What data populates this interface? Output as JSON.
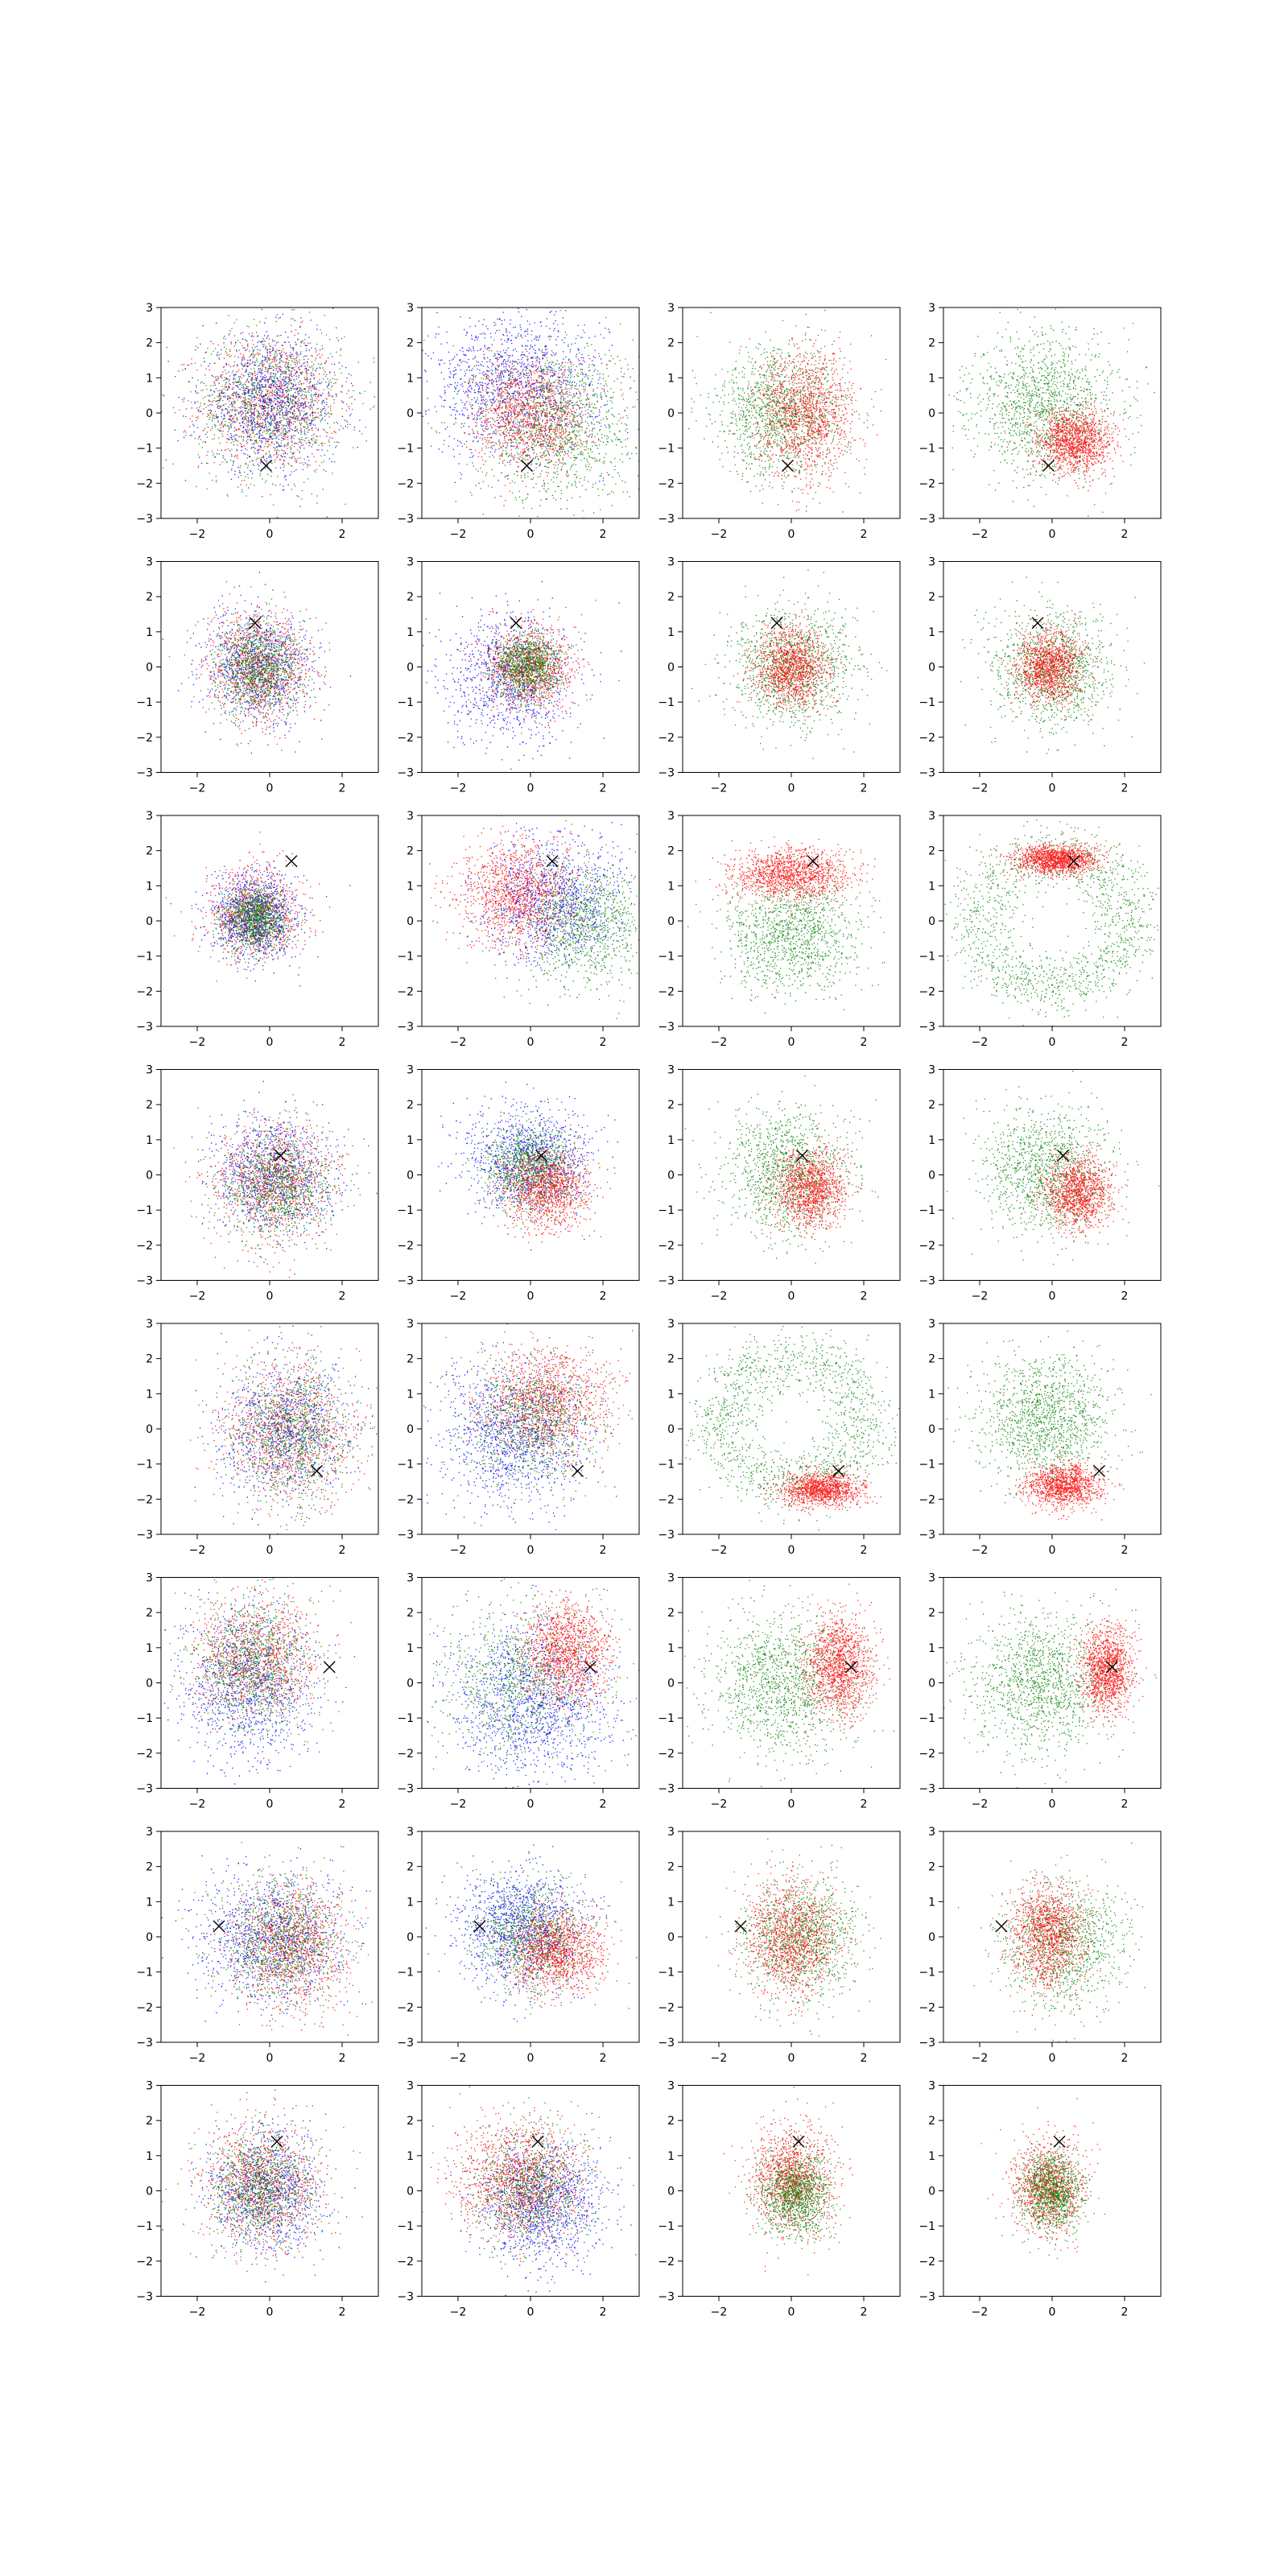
{
  "chart_data": {
    "type": "scatter",
    "description_grid": "8 rows x 4 columns of scatter panels",
    "shared_axes": {
      "xlim": [
        -3,
        3
      ],
      "ylim": [
        -3,
        3
      ],
      "xticks": [
        -2,
        0,
        2
      ],
      "yticks": [
        -3,
        -2,
        -1,
        0,
        1,
        2,
        3
      ],
      "xtick_labels": [
        "−2",
        "0",
        "2"
      ],
      "ytick_labels": [
        "−3",
        "−2",
        "−1",
        "0",
        "1",
        "2",
        "3"
      ],
      "grid": false,
      "legend": "none"
    },
    "colors": {
      "red": "#ff0000",
      "green": "#008000",
      "blue": "#0000ff",
      "marker": "#000000"
    },
    "marker_symbol": "x",
    "rows": [
      {
        "marker": [
          -0.1,
          -1.5
        ],
        "panels": [
          {
            "clusters": [
              {
                "color": "red",
                "cx": 0.0,
                "cy": 0.3,
                "sx": 0.95,
                "sy": 0.95,
                "n": 1100
              },
              {
                "color": "green",
                "cx": 0.0,
                "cy": 0.3,
                "sx": 1.0,
                "sy": 1.0,
                "n": 1100
              },
              {
                "color": "blue",
                "cx": 0.0,
                "cy": 0.3,
                "sx": 0.95,
                "sy": 0.95,
                "n": 1100
              }
            ]
          },
          {
            "clusters": [
              {
                "color": "blue",
                "cx": -0.4,
                "cy": 0.8,
                "sx": 1.2,
                "sy": 1.0,
                "n": 1300
              },
              {
                "color": "green",
                "cx": 0.6,
                "cy": -0.3,
                "sx": 1.1,
                "sy": 1.1,
                "n": 1300
              },
              {
                "color": "red",
                "cx": 0.0,
                "cy": 0.0,
                "sx": 0.8,
                "sy": 0.8,
                "n": 1200
              }
            ]
          },
          {
            "clusters": [
              {
                "color": "green",
                "cx": -0.3,
                "cy": 0.0,
                "sx": 0.9,
                "sy": 0.9,
                "n": 1300
              },
              {
                "color": "red",
                "cx": 0.4,
                "cy": 0.0,
                "sx": 0.65,
                "sy": 0.9,
                "n": 1300
              }
            ]
          },
          {
            "clusters": [
              {
                "color": "green",
                "cx": -0.2,
                "cy": 0.2,
                "sx": 1.0,
                "sy": 1.0,
                "n": 1400
              },
              {
                "color": "red",
                "cx": 0.6,
                "cy": -0.8,
                "sx": 0.5,
                "sy": 0.45,
                "n": 1300
              }
            ]
          }
        ]
      },
      {
        "marker": [
          -0.4,
          1.25
        ],
        "panels": [
          {
            "clusters": [
              {
                "color": "blue",
                "cx": -0.3,
                "cy": 0.0,
                "sx": 0.75,
                "sy": 0.8,
                "n": 1000
              },
              {
                "color": "red",
                "cx": -0.3,
                "cy": 0.0,
                "sx": 0.7,
                "sy": 0.75,
                "n": 1000
              },
              {
                "color": "green",
                "cx": -0.3,
                "cy": 0.0,
                "sx": 0.6,
                "sy": 0.65,
                "n": 1000
              }
            ]
          },
          {
            "clusters": [
              {
                "color": "blue",
                "cx": -0.6,
                "cy": -0.3,
                "sx": 0.9,
                "sy": 0.9,
                "n": 1000
              },
              {
                "color": "red",
                "cx": -0.1,
                "cy": 0.0,
                "sx": 0.6,
                "sy": 0.6,
                "n": 1100
              },
              {
                "color": "green",
                "cx": -0.1,
                "cy": 0.0,
                "sx": 0.45,
                "sy": 0.45,
                "n": 1000
              }
            ]
          },
          {
            "clusters": [
              {
                "color": "green",
                "cx": 0.0,
                "cy": 0.0,
                "sx": 0.85,
                "sy": 0.85,
                "n": 1200
              },
              {
                "color": "red",
                "cx": 0.0,
                "cy": 0.0,
                "sx": 0.5,
                "sy": 0.55,
                "n": 1200
              }
            ]
          },
          {
            "clusters": [
              {
                "color": "green",
                "cx": 0.0,
                "cy": 0.0,
                "sx": 0.8,
                "sy": 0.8,
                "n": 1200
              },
              {
                "color": "red",
                "cx": -0.1,
                "cy": 0.0,
                "sx": 0.45,
                "sy": 0.5,
                "n": 1200
              }
            ]
          }
        ]
      },
      {
        "marker": [
          0.6,
          1.7
        ],
        "panels": [
          {
            "clusters": [
              {
                "color": "red",
                "cx": -0.4,
                "cy": 0.2,
                "sx": 0.6,
                "sy": 0.65,
                "n": 1000
              },
              {
                "color": "blue",
                "cx": -0.4,
                "cy": 0.1,
                "sx": 0.6,
                "sy": 0.6,
                "n": 1000
              },
              {
                "color": "green",
                "cx": -0.4,
                "cy": 0.1,
                "sx": 0.45,
                "sy": 0.45,
                "n": 1000
              }
            ]
          },
          {
            "clusters": [
              {
                "color": "green",
                "cx": 1.4,
                "cy": 0.0,
                "sx": 0.85,
                "sy": 0.9,
                "n": 1100
              },
              {
                "color": "blue",
                "cx": 0.6,
                "cy": 0.6,
                "sx": 1.0,
                "sy": 0.9,
                "n": 1100
              },
              {
                "color": "red",
                "cx": -0.4,
                "cy": 0.8,
                "sx": 0.8,
                "sy": 0.75,
                "n": 1200
              }
            ]
          },
          {
            "clusters": [
              {
                "color": "green",
                "cx": 0.0,
                "cy": -0.3,
                "sx": 0.9,
                "sy": 0.8,
                "n": 1200
              },
              {
                "color": "red",
                "cx": 0.0,
                "cy": 1.35,
                "sx": 0.8,
                "sy": 0.35,
                "n": 1300
              }
            ]
          },
          {
            "clusters": [
              {
                "color": "green",
                "ring": true,
                "cx": 0.0,
                "cy": 0.0,
                "r": 2.1,
                "spread": 0.5,
                "n": 1400
              },
              {
                "color": "red",
                "cx": 0.1,
                "cy": 1.75,
                "sx": 0.55,
                "sy": 0.2,
                "n": 1300
              }
            ]
          }
        ]
      },
      {
        "marker": [
          0.3,
          0.55
        ],
        "panels": [
          {
            "clusters": [
              {
                "color": "blue",
                "cx": 0.1,
                "cy": 0.0,
                "sx": 0.85,
                "sy": 0.85,
                "n": 1000
              },
              {
                "color": "red",
                "cx": 0.1,
                "cy": -0.2,
                "sx": 0.85,
                "sy": 0.85,
                "n": 1000
              },
              {
                "color": "green",
                "cx": 0.2,
                "cy": -0.3,
                "sx": 0.75,
                "sy": 0.75,
                "n": 1000
              }
            ]
          },
          {
            "clusters": [
              {
                "color": "blue",
                "cx": -0.1,
                "cy": 0.4,
                "sx": 0.85,
                "sy": 0.75,
                "n": 1100
              },
              {
                "color": "green",
                "cx": 0.0,
                "cy": 0.2,
                "sx": 0.6,
                "sy": 0.6,
                "n": 1000
              },
              {
                "color": "red",
                "cx": 0.4,
                "cy": -0.4,
                "sx": 0.6,
                "sy": 0.55,
                "n": 1100
              }
            ]
          },
          {
            "clusters": [
              {
                "color": "green",
                "cx": -0.1,
                "cy": 0.1,
                "sx": 0.85,
                "sy": 0.85,
                "n": 1200
              },
              {
                "color": "red",
                "cx": 0.5,
                "cy": -0.4,
                "sx": 0.5,
                "sy": 0.55,
                "n": 1200
              }
            ]
          },
          {
            "clusters": [
              {
                "color": "green",
                "cx": -0.2,
                "cy": 0.1,
                "sx": 0.85,
                "sy": 0.85,
                "n": 1200
              },
              {
                "color": "red",
                "cx": 0.7,
                "cy": -0.5,
                "sx": 0.45,
                "sy": 0.5,
                "n": 1200
              }
            ]
          }
        ]
      },
      {
        "marker": [
          1.3,
          -1.2
        ],
        "panels": [
          {
            "clusters": [
              {
                "color": "blue",
                "cx": 0.4,
                "cy": 0.0,
                "sx": 0.9,
                "sy": 1.0,
                "n": 1000
              },
              {
                "color": "red",
                "cx": 0.5,
                "cy": -0.1,
                "sx": 0.9,
                "sy": 1.0,
                "n": 1000
              },
              {
                "color": "green",
                "cx": 0.6,
                "cy": -0.1,
                "sx": 0.8,
                "sy": 1.0,
                "n": 1000
              }
            ]
          },
          {
            "clusters": [
              {
                "color": "blue",
                "cx": -0.5,
                "cy": -0.1,
                "sx": 1.0,
                "sy": 1.0,
                "n": 1200
              },
              {
                "color": "red",
                "cx": 0.4,
                "cy": 0.8,
                "sx": 0.9,
                "sy": 0.8,
                "n": 1200
              },
              {
                "color": "green",
                "cx": 0.0,
                "cy": 0.2,
                "sx": 0.9,
                "sy": 0.9,
                "n": 900
              }
            ]
          },
          {
            "clusters": [
              {
                "color": "green",
                "ring": true,
                "cx": 0.0,
                "cy": 0.2,
                "r": 2.0,
                "spread": 0.5,
                "n": 1400
              },
              {
                "color": "red",
                "cx": 0.8,
                "cy": -1.7,
                "sx": 0.55,
                "sy": 0.25,
                "n": 1200
              }
            ]
          },
          {
            "clusters": [
              {
                "color": "green",
                "cx": -0.2,
                "cy": 0.3,
                "sx": 0.9,
                "sy": 0.9,
                "n": 1300
              },
              {
                "color": "red",
                "cx": 0.3,
                "cy": -1.6,
                "sx": 0.5,
                "sy": 0.3,
                "n": 1200
              }
            ]
          }
        ]
      },
      {
        "marker": [
          1.65,
          0.45
        ],
        "panels": [
          {
            "clusters": [
              {
                "color": "blue",
                "cx": -0.6,
                "cy": 0.0,
                "sx": 0.9,
                "sy": 1.1,
                "n": 1100
              },
              {
                "color": "red",
                "cx": -0.4,
                "cy": 0.7,
                "sx": 0.85,
                "sy": 0.85,
                "n": 1000
              },
              {
                "color": "green",
                "cx": -0.5,
                "cy": 0.5,
                "sx": 0.8,
                "sy": 0.9,
                "n": 1000
              }
            ]
          },
          {
            "clusters": [
              {
                "color": "blue",
                "cx": 0.0,
                "cy": -0.5,
                "sx": 1.1,
                "sy": 1.1,
                "n": 1300
              },
              {
                "color": "green",
                "cx": -0.2,
                "cy": 0.0,
                "sx": 1.1,
                "sy": 1.1,
                "n": 1000
              },
              {
                "color": "red",
                "cx": 1.0,
                "cy": 0.9,
                "sx": 0.6,
                "sy": 0.7,
                "n": 1200
              }
            ]
          },
          {
            "clusters": [
              {
                "color": "green",
                "cx": -0.3,
                "cy": 0.0,
                "sx": 1.0,
                "sy": 1.0,
                "n": 1300
              },
              {
                "color": "red",
                "cx": 1.3,
                "cy": 0.5,
                "sx": 0.45,
                "sy": 0.7,
                "n": 1300
              }
            ]
          },
          {
            "clusters": [
              {
                "color": "green",
                "cx": -0.3,
                "cy": 0.0,
                "sx": 0.95,
                "sy": 0.95,
                "n": 1300
              },
              {
                "color": "red",
                "cx": 1.5,
                "cy": 0.4,
                "sx": 0.35,
                "sy": 0.6,
                "n": 1300
              }
            ]
          }
        ]
      },
      {
        "marker": [
          -1.4,
          0.3
        ],
        "panels": [
          {
            "clusters": [
              {
                "color": "blue",
                "cx": 0.0,
                "cy": 0.0,
                "sx": 1.0,
                "sy": 0.95,
                "n": 1100
              },
              {
                "color": "red",
                "cx": 0.6,
                "cy": -0.2,
                "sx": 0.8,
                "sy": 0.85,
                "n": 1100
              },
              {
                "color": "green",
                "cx": 0.3,
                "cy": -0.1,
                "sx": 0.85,
                "sy": 0.85,
                "n": 1000
              }
            ]
          },
          {
            "clusters": [
              {
                "color": "blue",
                "cx": -0.3,
                "cy": 0.3,
                "sx": 0.85,
                "sy": 0.85,
                "n": 1200
              },
              {
                "color": "green",
                "cx": 0.0,
                "cy": 0.0,
                "sx": 0.75,
                "sy": 0.75,
                "n": 1000
              },
              {
                "color": "red",
                "cx": 0.7,
                "cy": -0.4,
                "sx": 0.65,
                "sy": 0.6,
                "n": 1200
              }
            ]
          },
          {
            "clusters": [
              {
                "color": "green",
                "cx": 0.2,
                "cy": 0.0,
                "sx": 0.8,
                "sy": 0.85,
                "n": 1200
              },
              {
                "color": "red",
                "cx": 0.0,
                "cy": 0.0,
                "sx": 0.65,
                "sy": 0.8,
                "n": 1200
              }
            ]
          },
          {
            "clusters": [
              {
                "color": "green",
                "cx": 0.3,
                "cy": -0.2,
                "sx": 0.85,
                "sy": 0.85,
                "n": 1200
              },
              {
                "color": "red",
                "cx": -0.1,
                "cy": 0.1,
                "sx": 0.5,
                "sy": 0.7,
                "n": 1200
              }
            ]
          }
        ]
      },
      {
        "marker": [
          0.2,
          1.4
        ],
        "panels": [
          {
            "clusters": [
              {
                "color": "blue",
                "cx": -0.1,
                "cy": 0.0,
                "sx": 0.8,
                "sy": 0.85,
                "n": 1000
              },
              {
                "color": "red",
                "cx": -0.2,
                "cy": 0.2,
                "sx": 0.8,
                "sy": 0.85,
                "n": 1000
              },
              {
                "color": "green",
                "cx": -0.2,
                "cy": 0.1,
                "sx": 0.7,
                "sy": 0.8,
                "n": 1000
              }
            ]
          },
          {
            "clusters": [
              {
                "color": "blue",
                "cx": 0.3,
                "cy": -0.3,
                "sx": 0.85,
                "sy": 0.85,
                "n": 1200
              },
              {
                "color": "red",
                "cx": -0.3,
                "cy": 0.4,
                "sx": 0.85,
                "sy": 0.85,
                "n": 1300
              },
              {
                "color": "green",
                "cx": 0.0,
                "cy": 0.0,
                "sx": 0.8,
                "sy": 0.8,
                "n": 900
              }
            ]
          },
          {
            "clusters": [
              {
                "color": "red",
                "cx": 0.0,
                "cy": 0.4,
                "sx": 0.55,
                "sy": 0.7,
                "n": 1200
              },
              {
                "color": "green",
                "cx": 0.1,
                "cy": -0.1,
                "sx": 0.5,
                "sy": 0.6,
                "n": 1200
              }
            ]
          },
          {
            "clusters": [
              {
                "color": "red",
                "cx": -0.1,
                "cy": 0.1,
                "sx": 0.5,
                "sy": 0.65,
                "n": 1100
              },
              {
                "color": "green",
                "cx": 0.0,
                "cy": 0.0,
                "sx": 0.4,
                "sy": 0.55,
                "n": 1100
              }
            ]
          }
        ]
      }
    ]
  }
}
